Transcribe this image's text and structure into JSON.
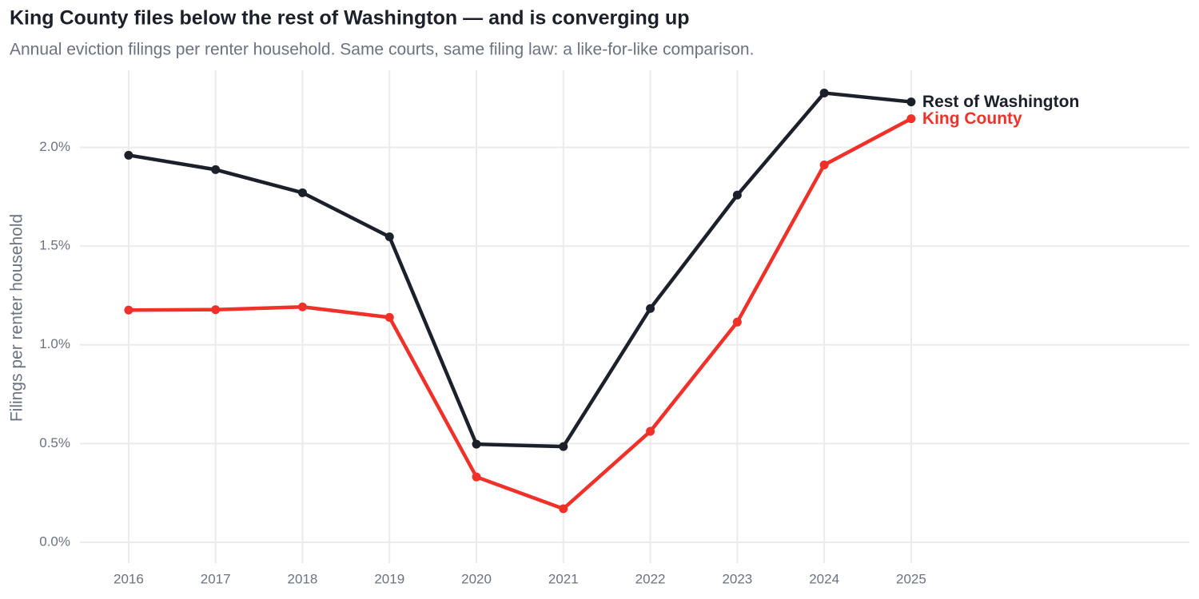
{
  "chart_data": {
    "type": "line",
    "title": "King County files below the rest of Washington — and is converging up",
    "subtitle": "Annual eviction filings per renter household. Same courts, same filing law: a like-for-like comparison.",
    "y_label": "Filings per renter household",
    "x": [
      2016,
      2017,
      2018,
      2019,
      2020,
      2021,
      2022,
      2023,
      2024,
      2025
    ],
    "series": [
      {
        "name": "Rest of Washington",
        "color": "#1b202b",
        "values": [
          1.96,
          1.887,
          1.77,
          1.547,
          0.497,
          0.485,
          1.184,
          1.758,
          2.275,
          2.23
        ]
      },
      {
        "name": "King County",
        "color": "#f0312a",
        "values": [
          1.176,
          1.178,
          1.192,
          1.139,
          0.331,
          0.17,
          0.562,
          1.115,
          1.911,
          2.145
        ]
      }
    ],
    "xlim": [
      2015.44,
      2028.2
    ],
    "xticks": [
      2016,
      2017,
      2018,
      2019,
      2020,
      2021,
      2022,
      2023,
      2024,
      2025
    ],
    "ylim": [
      -0.105,
      2.39
    ],
    "yticks": [
      {
        "value": 0,
        "label": "0.0%"
      },
      {
        "value": 0.5,
        "label": "0.5%"
      },
      {
        "value": 1,
        "label": "1.0%"
      },
      {
        "value": 1.5,
        "label": "1.5%"
      },
      {
        "value": 2,
        "label": "2.0%"
      }
    ],
    "grid": true
  }
}
